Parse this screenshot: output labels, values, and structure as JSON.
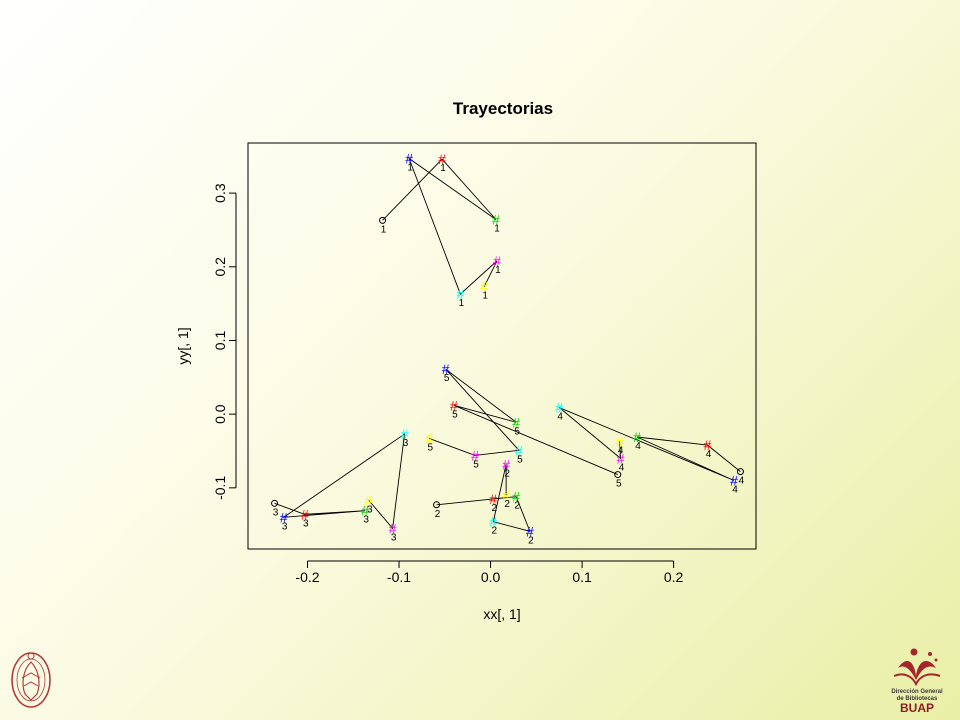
{
  "chart_data": {
    "type": "scatter",
    "title": "Trayectorias",
    "xlabel": "xx[, 1]",
    "ylabel": "yy[, 1]",
    "xlim": [
      -0.265,
      0.29
    ],
    "ylim": [
      -0.183,
      0.368
    ],
    "x_ticks": [
      -0.2,
      -0.1,
      0.0,
      0.1,
      0.2
    ],
    "x_tick_labels": [
      "-0.2",
      "-0.1",
      "0.0",
      "0.1",
      "0.2"
    ],
    "y_ticks": [
      -0.1,
      0.0,
      0.1,
      0.2,
      0.3
    ],
    "y_tick_labels": [
      "-0.1",
      "0.0",
      "0.1",
      "0.2",
      "0.3"
    ],
    "grid": false,
    "frame": true,
    "point_colors": [
      "#000000",
      "#ff0000",
      "#00cc00",
      "#0000ff",
      "#00ffff",
      "#ff00ff",
      "#ffff00"
    ],
    "trajectories": [
      {
        "label": "1",
        "points": [
          {
            "x": -0.118,
            "y": 0.263,
            "mark": "o",
            "color": "#000000"
          },
          {
            "x": -0.053,
            "y": 0.346,
            "mark": "#",
            "color": "#ff0000"
          },
          {
            "x": 0.006,
            "y": 0.264,
            "mark": "#",
            "color": "#00cc00"
          },
          {
            "x": -0.089,
            "y": 0.347,
            "mark": "#",
            "color": "#0000ff"
          },
          {
            "x": -0.033,
            "y": 0.163,
            "mark": "#",
            "color": "#00ffff"
          },
          {
            "x": 0.007,
            "y": 0.208,
            "mark": "#",
            "color": "#ff00ff"
          },
          {
            "x": -0.007,
            "y": 0.173,
            "mark": "#",
            "color": "#ffff00"
          }
        ]
      },
      {
        "label": "2",
        "points": [
          {
            "x": -0.059,
            "y": -0.123,
            "mark": "o",
            "color": "#000000"
          },
          {
            "x": 0.003,
            "y": -0.115,
            "mark": "#",
            "color": "#ff0000"
          },
          {
            "x": 0.028,
            "y": -0.112,
            "mark": "#",
            "color": "#00cc00"
          },
          {
            "x": 0.043,
            "y": -0.159,
            "mark": "#",
            "color": "#0000ff"
          },
          {
            "x": 0.003,
            "y": -0.146,
            "mark": "#",
            "color": "#00ffff"
          },
          {
            "x": 0.017,
            "y": -0.068,
            "mark": "#",
            "color": "#ff00ff"
          },
          {
            "x": 0.017,
            "y": -0.11,
            "mark": "#",
            "color": "#ffff00"
          }
        ]
      },
      {
        "label": "3",
        "points": [
          {
            "x": -0.236,
            "y": -0.121,
            "mark": "o",
            "color": "#000000"
          },
          {
            "x": -0.203,
            "y": -0.136,
            "mark": "#",
            "color": "#ff0000"
          },
          {
            "x": -0.137,
            "y": -0.131,
            "mark": "#",
            "color": "#00cc00"
          },
          {
            "x": -0.226,
            "y": -0.14,
            "mark": "#",
            "color": "#0000ff"
          },
          {
            "x": -0.094,
            "y": -0.027,
            "mark": "#",
            "color": "#00ffff"
          },
          {
            "x": -0.107,
            "y": -0.155,
            "mark": "#",
            "color": "#ff00ff"
          },
          {
            "x": -0.133,
            "y": -0.117,
            "mark": "#",
            "color": "#ffff00"
          }
        ]
      },
      {
        "label": "4",
        "points": [
          {
            "x": 0.273,
            "y": -0.078,
            "mark": "o",
            "color": "#000000"
          },
          {
            "x": 0.237,
            "y": -0.042,
            "mark": "#",
            "color": "#ff0000"
          },
          {
            "x": 0.16,
            "y": -0.031,
            "mark": "#",
            "color": "#00cc00"
          },
          {
            "x": 0.266,
            "y": -0.09,
            "mark": "#",
            "color": "#0000ff"
          },
          {
            "x": 0.075,
            "y": 0.009,
            "mark": "#",
            "color": "#00ffff"
          },
          {
            "x": 0.142,
            "y": -0.06,
            "mark": "#",
            "color": "#ff00ff"
          },
          {
            "x": 0.141,
            "y": -0.037,
            "mark": "#",
            "color": "#ffff00"
          }
        ]
      },
      {
        "label": "5",
        "points": [
          {
            "x": 0.139,
            "y": -0.082,
            "mark": "o",
            "color": "#000000"
          },
          {
            "x": -0.04,
            "y": 0.012,
            "mark": "#",
            "color": "#ff0000"
          },
          {
            "x": 0.028,
            "y": -0.011,
            "mark": "#",
            "color": "#00cc00"
          },
          {
            "x": -0.049,
            "y": 0.061,
            "mark": "#",
            "color": "#0000ff"
          },
          {
            "x": 0.031,
            "y": -0.049,
            "mark": "#",
            "color": "#00ffff"
          },
          {
            "x": -0.017,
            "y": -0.056,
            "mark": "#",
            "color": "#ff00ff"
          },
          {
            "x": -0.067,
            "y": -0.033,
            "mark": "#",
            "color": "#ffff00"
          }
        ]
      }
    ]
  }
}
